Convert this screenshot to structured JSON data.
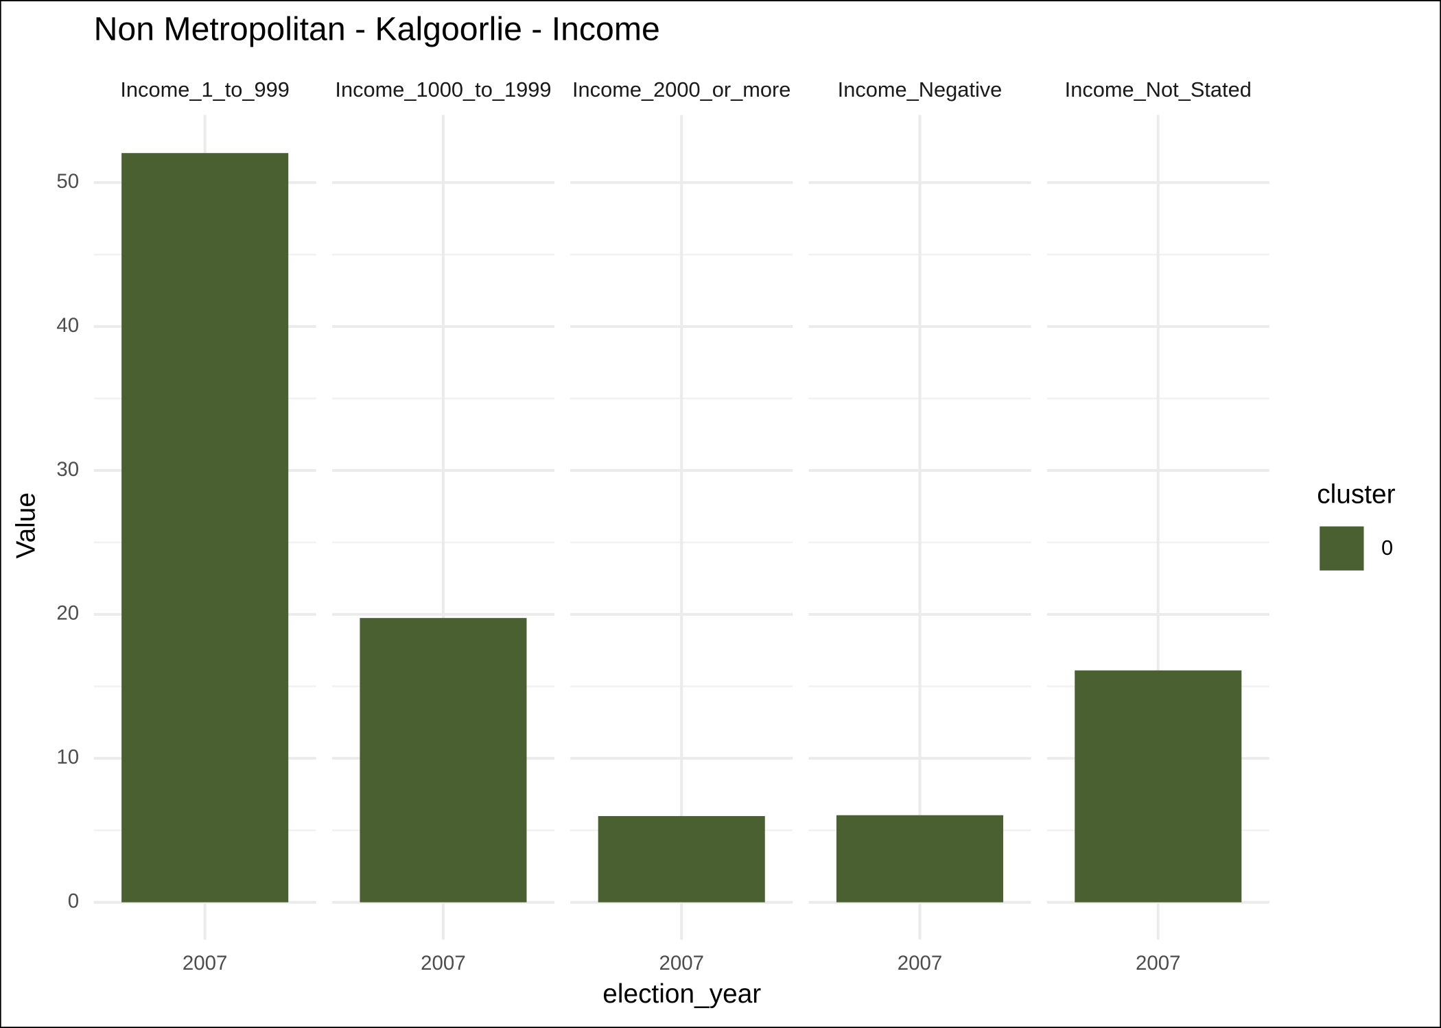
{
  "chart_data": {
    "type": "bar",
    "title": "Non Metropolitan - Kalgoorlie - Income",
    "x_label": "election_year",
    "y_label": "Value",
    "ylim": [
      -2.6,
      54.7
    ],
    "yticks": [
      0,
      10,
      20,
      30,
      40,
      50
    ],
    "grid": true,
    "legend_title": "cluster",
    "legend_position": "right",
    "series": [
      {
        "name": "0",
        "color": "#4a6031"
      }
    ],
    "facets": [
      {
        "title": "Income_1_to_999",
        "categories": [
          "2007"
        ],
        "values": [
          52.05
        ]
      },
      {
        "title": "Income_1000_to_1999",
        "categories": [
          "2007"
        ],
        "values": [
          19.75
        ]
      },
      {
        "title": "Income_2000_or_more",
        "categories": [
          "2007"
        ],
        "values": [
          5.99
        ]
      },
      {
        "title": "Income_Negative",
        "categories": [
          "2007"
        ],
        "values": [
          6.05
        ]
      },
      {
        "title": "Income_Not_Stated",
        "categories": [
          "2007"
        ],
        "values": [
          16.11
        ]
      }
    ]
  }
}
